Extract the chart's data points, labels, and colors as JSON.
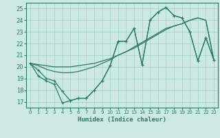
{
  "title": "",
  "xlabel": "Humidex (Indice chaleur)",
  "xlim": [
    -0.5,
    23.5
  ],
  "ylim": [
    16.5,
    25.5
  ],
  "yticks": [
    17,
    18,
    19,
    20,
    21,
    22,
    23,
    24,
    25
  ],
  "xticks": [
    0,
    1,
    2,
    3,
    4,
    5,
    6,
    7,
    8,
    9,
    10,
    11,
    12,
    13,
    14,
    15,
    16,
    17,
    18,
    19,
    20,
    21,
    22,
    23
  ],
  "background_color": "#cce9e5",
  "grid_color": "#aad4cf",
  "line_color": "#2a7a6a",
  "line_jagged": {
    "x": [
      0,
      1,
      2,
      3,
      4,
      5,
      6,
      7,
      8,
      9,
      10,
      11,
      12,
      13,
      14,
      15,
      16,
      17,
      18,
      19,
      20,
      21,
      22,
      23
    ],
    "y": [
      20.3,
      19.7,
      19.0,
      18.8,
      17.9,
      17.1,
      17.3,
      17.3,
      18.0,
      18.8,
      20.1,
      22.2,
      22.2,
      23.3,
      20.2,
      24.0,
      24.7,
      25.1,
      24.4,
      24.2,
      23.0,
      20.5,
      22.5,
      20.6
    ]
  },
  "line_trend1": {
    "x": [
      0,
      1,
      2,
      3,
      4,
      5,
      6,
      7,
      8,
      9,
      10,
      11,
      12,
      13,
      14,
      15,
      16,
      17,
      18,
      19,
      20,
      21,
      22,
      23
    ],
    "y": [
      20.3,
      20.2,
      20.1,
      20.0,
      20.0,
      20.0,
      20.1,
      20.2,
      20.3,
      20.5,
      20.7,
      21.0,
      21.3,
      21.6,
      22.0,
      22.4,
      22.8,
      23.2,
      23.5,
      23.7,
      24.0,
      24.2,
      24.0,
      20.6
    ]
  },
  "line_trend2": {
    "x": [
      0,
      1,
      2,
      3,
      4,
      5,
      6,
      7,
      8,
      9,
      10,
      11,
      12,
      13,
      14,
      15,
      16,
      17,
      18,
      19,
      20,
      21,
      22,
      23
    ],
    "y": [
      20.3,
      20.1,
      19.8,
      19.6,
      19.5,
      19.5,
      19.6,
      19.8,
      20.0,
      20.3,
      20.6,
      21.0,
      21.3,
      21.7,
      22.1,
      22.5,
      22.9,
      23.3,
      23.5,
      23.7,
      24.0,
      24.2,
      24.0,
      20.6
    ]
  },
  "line_bottom": {
    "x": [
      0,
      1,
      2,
      3,
      4,
      5,
      6,
      7,
      8,
      9,
      10,
      11,
      12,
      13,
      14,
      15,
      16,
      17,
      18,
      19,
      20,
      21,
      22,
      23
    ],
    "y": [
      20.3,
      19.2,
      18.8,
      18.5,
      16.9,
      17.1,
      17.3,
      17.3,
      18.0,
      18.8,
      20.1,
      22.2,
      22.2,
      23.3,
      20.2,
      24.0,
      24.7,
      25.1,
      24.4,
      24.2,
      23.0,
      20.5,
      22.5,
      20.6
    ]
  }
}
